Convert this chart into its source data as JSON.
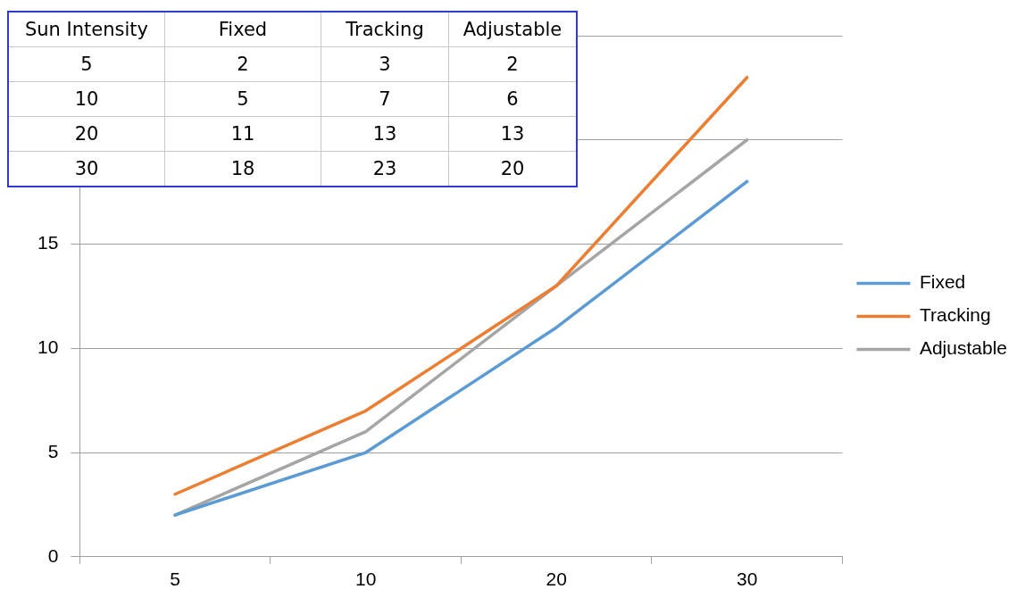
{
  "chart_data": [
    {
      "type": "line",
      "categories": [
        "5",
        "10",
        "20",
        "30"
      ],
      "series": [
        {
          "name": "Fixed",
          "color": "#5b9bd5",
          "values": [
            2,
            5,
            11,
            18
          ]
        },
        {
          "name": "Tracking",
          "color": "#ed7d31",
          "values": [
            3,
            7,
            13,
            23
          ]
        },
        {
          "name": "Adjustable",
          "color": "#a5a5a5",
          "values": [
            2,
            6,
            13,
            20
          ]
        }
      ],
      "ylim": [
        0,
        25
      ],
      "yticks": [
        0,
        5,
        10,
        15,
        {
          "value": 20,
          "label": null
        },
        {
          "value": 25,
          "label": null
        }
      ],
      "grid": "y",
      "legend": "right",
      "marker": "none",
      "line_style": "solid"
    },
    {
      "type": "other",
      "annotations": [
        "Sun Intensity",
        "Fixed",
        "Tracking",
        "Adjustable",
        "5",
        "2",
        "3",
        "2",
        "10",
        "5",
        "7",
        "6",
        "20",
        "11",
        "13",
        "13",
        "30",
        "18",
        "23",
        "20"
      ]
    }
  ]
}
